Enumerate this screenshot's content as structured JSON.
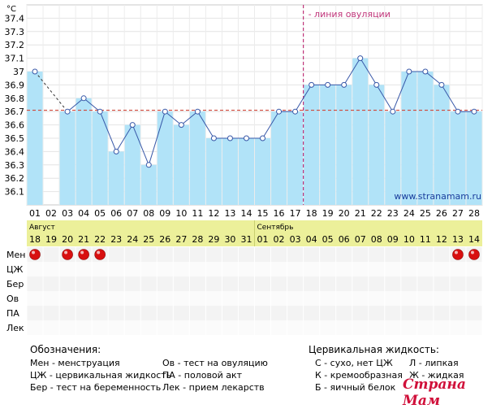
{
  "chart_data": {
    "type": "bar",
    "unit_label": "°С",
    "y_ticks": [
      36.1,
      36.2,
      36.3,
      36.4,
      36.5,
      36.6,
      36.7,
      36.8,
      36.9,
      37,
      37.1,
      37.2,
      37.3,
      37.4
    ],
    "y_tick_labels": [
      "36.1",
      "36.2",
      "36.3",
      "36.4",
      "36.5",
      "36.6",
      "36.7",
      "36.8",
      "36.9",
      "37",
      "37.1",
      "37.2",
      "37.3",
      "37.4"
    ],
    "ylim": [
      36.0,
      37.5
    ],
    "cycle_days": [
      "01",
      "02",
      "03",
      "04",
      "05",
      "06",
      "07",
      "08",
      "09",
      "10",
      "11",
      "12",
      "13",
      "14",
      "15",
      "16",
      "17",
      "18",
      "19",
      "20",
      "21",
      "22",
      "23",
      "24",
      "25",
      "26",
      "27",
      "28"
    ],
    "values": [
      37.0,
      null,
      36.7,
      36.8,
      36.7,
      36.4,
      36.6,
      36.3,
      36.7,
      36.6,
      36.7,
      36.5,
      36.5,
      36.5,
      36.5,
      36.7,
      36.7,
      36.9,
      36.9,
      36.9,
      37.1,
      36.9,
      36.7,
      37.0,
      37.0,
      36.9,
      36.7,
      36.7
    ],
    "coverline": 36.71,
    "ovulation_day": "18",
    "ovulation_label": "- линия овуляции",
    "source_label": "www.stranamam.ru",
    "months": [
      {
        "name": "Август",
        "start_index": 0
      },
      {
        "name": "Сентябрь",
        "start_index": 14
      }
    ],
    "dates": [
      "18",
      "19",
      "20",
      "21",
      "22",
      "23",
      "24",
      "25",
      "26",
      "27",
      "28",
      "29",
      "30",
      "31",
      "01",
      "02",
      "03",
      "04",
      "05",
      "06",
      "07",
      "08",
      "09",
      "10",
      "11",
      "12",
      "13",
      "14"
    ],
    "row_labels": [
      "Мен",
      "ЦЖ",
      "Бер",
      "Ов",
      "ПА",
      "Лек"
    ],
    "menstruation_days": [
      "01",
      "03",
      "04",
      "05",
      "27",
      "28"
    ],
    "colors": {
      "bar": "#b1e3f8",
      "line": "#3858a8",
      "coverline": "#d0473a",
      "ovulation": "#c0357a",
      "date_bar": "#ecf09a",
      "dot": "#d81010"
    }
  },
  "legend": {
    "title": "Обозначения:",
    "items": [
      "Мен - менструация",
      "ЦЖ - цервикальная жидкость",
      "Бер - тест на беременность",
      "Ов - тест на овуляцию",
      "ПА - половой акт",
      "Лек - прием лекарств"
    ]
  },
  "fluid": {
    "title": "Цервикальная жидкость:",
    "items": [
      "С - сухо, нет ЦЖ",
      "К - кремообразная",
      "Б - яичный белок",
      "Л - липкая",
      "Ж - жидкая"
    ]
  },
  "watermark": "Страна Мам"
}
